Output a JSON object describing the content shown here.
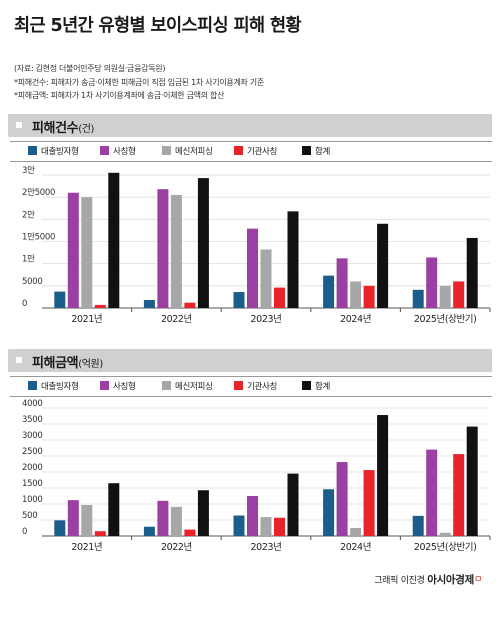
{
  "title": "최근 5년간 유형별 보이스피싱 피해 현황",
  "notes": [
    "(자료: 김현정 더불어민주당 의원실·금융감독원)",
    "*피해건수: 피해자가 송금·이체한 피해금이 직접 입금된 1차 사기이용계좌 기준",
    "*피해금액: 피해자가 1차 사기이용계좌에 송금·이체한 금액의 합산"
  ],
  "colors": {
    "대출빙자형": "#1b5e8c",
    "사칭형": "#9b3fa3",
    "메신저피싱": "#a7a7a7",
    "기관사칭": "#e8232a",
    "합계": "#111111"
  },
  "chart_data": [
    {
      "type": "bar",
      "title": "피해건수",
      "unit": "(건)",
      "categories": [
        "2021년",
        "2022년",
        "2023년",
        "2024년",
        "2025년(상반기)"
      ],
      "ylim": [
        0,
        30000
      ],
      "yticks": [
        0,
        5000,
        10000,
        15000,
        20000,
        25000,
        30000
      ],
      "ytick_labels": [
        "0",
        "5000",
        "1만",
        "1만5000",
        "2만",
        "2만5000",
        "3만"
      ],
      "grid": true,
      "legend_position": "top",
      "series": [
        {
          "name": "대출빙자형",
          "values": [
            3700,
            1800,
            3600,
            7300,
            4100
          ]
        },
        {
          "name": "사칭형",
          "values": [
            26000,
            26800,
            17900,
            11200,
            11400
          ]
        },
        {
          "name": "메신저피싱",
          "values": [
            25000,
            25500,
            13200,
            6000,
            5000
          ]
        },
        {
          "name": "기관사칭",
          "values": [
            700,
            1200,
            4600,
            5000,
            6000
          ]
        },
        {
          "name": "합계",
          "values": [
            30500,
            29300,
            21800,
            19000,
            15800
          ]
        }
      ]
    },
    {
      "type": "bar",
      "title": "피해금액",
      "unit": "(억원)",
      "categories": [
        "2021년",
        "2022년",
        "2023년",
        "2024년",
        "2025년(상반기)"
      ],
      "ylim": [
        0,
        4000
      ],
      "yticks": [
        0,
        500,
        1000,
        1500,
        2000,
        2500,
        3000,
        3500,
        4000
      ],
      "ytick_labels": [
        "0",
        "500",
        "1000",
        "1500",
        "2000",
        "2500",
        "3000",
        "3500",
        "4000"
      ],
      "grid": true,
      "legend_position": "top",
      "series": [
        {
          "name": "대출빙자형",
          "values": [
            490,
            290,
            640,
            1460,
            630
          ]
        },
        {
          "name": "사칭형",
          "values": [
            1120,
            1100,
            1250,
            2310,
            2700
          ]
        },
        {
          "name": "메신저피싱",
          "values": [
            970,
            910,
            590,
            250,
            100
          ]
        },
        {
          "name": "기관사칭",
          "values": [
            150,
            200,
            570,
            2060,
            2560
          ]
        },
        {
          "name": "합계",
          "values": [
            1650,
            1430,
            1950,
            3780,
            3420
          ]
        }
      ]
    }
  ],
  "credit": {
    "prefix": "그래픽 이진경",
    "brand": "아시아경제",
    "brand_mark": "ㅁ"
  }
}
